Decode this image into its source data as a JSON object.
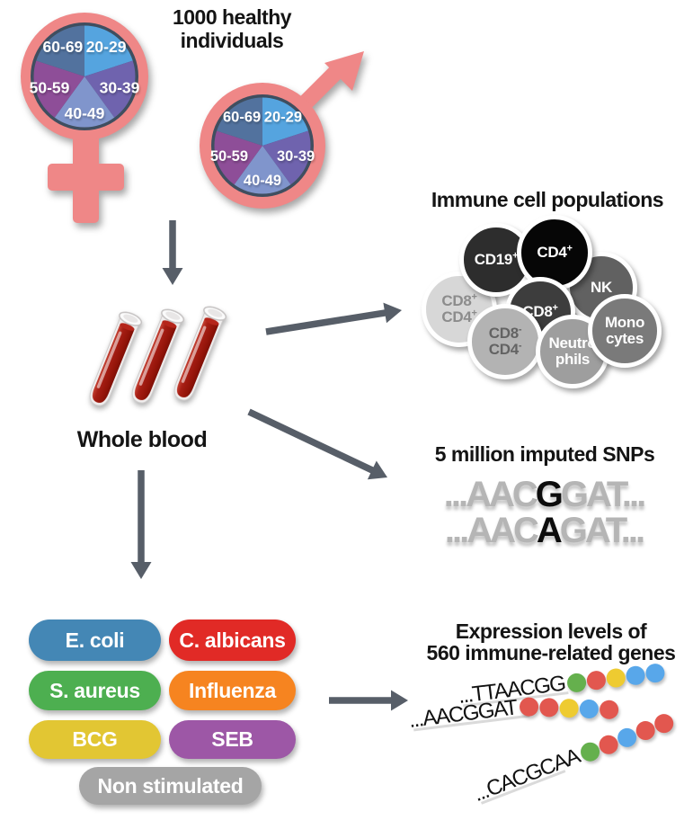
{
  "header": {
    "title_line1": "1000 healthy",
    "title_line2": "individuals"
  },
  "demographics": {
    "symbol_color": "#ef8787",
    "pie_border_color": "#3f4e5f",
    "age_groups": [
      {
        "label": "20-29",
        "color": "#55a4df"
      },
      {
        "label": "30-39",
        "color": "#6f63ae"
      },
      {
        "label": "40-49",
        "color": "#8095cc"
      },
      {
        "label": "50-59",
        "color": "#8e4e98"
      },
      {
        "label": "60-69",
        "color": "#52729e"
      }
    ]
  },
  "whole_blood": {
    "label": "Whole blood"
  },
  "immune_cells": {
    "title": "Immune cell populations",
    "cells": [
      {
        "id": "cd8pos-cd4pos",
        "lines": [
          {
            "text": "CD8",
            "sup": "+"
          },
          {
            "text": "CD4",
            "sup": "+"
          }
        ],
        "bg": "#d7d7d7",
        "fg": "#8c8c8c"
      },
      {
        "id": "cd19pos",
        "lines": [
          {
            "text": "CD19",
            "sup": "+"
          }
        ],
        "bg": "#2d2d2d",
        "fg": "#ffffff"
      },
      {
        "id": "nk",
        "lines": [
          {
            "text": "NK"
          }
        ],
        "bg": "#616161",
        "fg": "#ffffff"
      },
      {
        "id": "cd4pos",
        "lines": [
          {
            "text": "CD4",
            "sup": "+"
          }
        ],
        "bg": "#060606",
        "fg": "#ffffff"
      },
      {
        "id": "cd8pos",
        "lines": [
          {
            "text": "CD8",
            "sup": "+"
          }
        ],
        "bg": "#3d3d3d",
        "fg": "#ffffff"
      },
      {
        "id": "cd8neg-cd4neg",
        "lines": [
          {
            "text": "CD8",
            "sup": "-"
          },
          {
            "text": "CD4",
            "sup": "-"
          }
        ],
        "bg": "#b3b3b3",
        "fg": "#636363"
      },
      {
        "id": "neutrophils",
        "lines": [
          {
            "text": "Neutro"
          },
          {
            "text": "phils"
          }
        ],
        "bg": "#9e9e9e",
        "fg": "#ffffff"
      },
      {
        "id": "monocytes",
        "lines": [
          {
            "text": "Mono"
          },
          {
            "text": "cytes"
          }
        ],
        "bg": "#7a7a7a",
        "fg": "#ffffff"
      }
    ]
  },
  "snps": {
    "title": "5 million imputed SNPs",
    "sequences": [
      {
        "prefix": "...AAC",
        "snp": "G",
        "suffix": "GAT..."
      },
      {
        "prefix": "...AAC",
        "snp": "A",
        "suffix": "GAT..."
      }
    ]
  },
  "stimuli": {
    "items": [
      {
        "label": "E. coli",
        "color": "#4487b5"
      },
      {
        "label": "C. albicans",
        "color": "#e12a26"
      },
      {
        "label": "S. aureus",
        "color": "#4daf50"
      },
      {
        "label": "Influenza",
        "color": "#f68420"
      },
      {
        "label": "BCG",
        "color": "#e2c633"
      },
      {
        "label": "SEB",
        "color": "#9d57a6"
      },
      {
        "label": "Non stimulated",
        "color": "#a5a5a5"
      }
    ]
  },
  "expression": {
    "title_line1": "Expression levels of",
    "title_line2": "560 immune-related genes",
    "dot_colors": {
      "green": "#65b04d",
      "red": "#e2574f",
      "yellow": "#eecb31",
      "blue": "#58a7ea"
    },
    "rows": [
      {
        "seq": "...TTAACGG",
        "dots": [
          "green",
          "red",
          "yellow",
          "blue",
          "blue"
        ]
      },
      {
        "seq": "...AACGGAT",
        "dots": [
          "red",
          "red",
          "yellow",
          "blue",
          "red"
        ]
      },
      {
        "seq": "...CACGCAA",
        "dots": [
          "green",
          "red",
          "blue",
          "red",
          "red"
        ]
      }
    ]
  },
  "blood_color": "#a61e14",
  "arrow_color": "#575e68"
}
